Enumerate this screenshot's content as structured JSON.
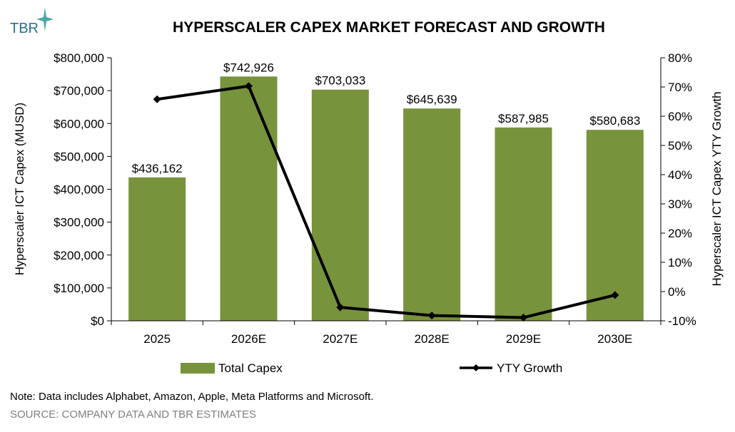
{
  "logo": {
    "text": "TBR"
  },
  "chart_data": {
    "type": "bar",
    "title": "HYPERSCALER CAPEX MARKET FORECAST AND GROWTH",
    "categories": [
      "2025",
      "2026E",
      "2027E",
      "2028E",
      "2029E",
      "2030E"
    ],
    "series": [
      {
        "name": "Total Capex",
        "type": "bar",
        "axis": "left",
        "color": "#77933c",
        "values": [
          436162,
          742926,
          703033,
          645639,
          587985,
          580683
        ],
        "labels": [
          "$436,162",
          "$742,926",
          "$703,033",
          "$645,639",
          "$587,985",
          "$580,683"
        ]
      },
      {
        "name": "YTY Growth",
        "type": "line",
        "axis": "right",
        "color": "#000000",
        "marker": "diamond",
        "values": [
          65.8,
          70.3,
          -5.4,
          -8.2,
          -8.9,
          -1.2
        ]
      }
    ],
    "ylabel": "Hyperscaler ICT Capex  (MUSD)",
    "ylabel_right": "Hyperscaler ICT Capex YTY Growth",
    "ylim": [
      0,
      800000
    ],
    "ylim_right": [
      -10,
      80
    ],
    "yticks": [
      "$0",
      "$100,000",
      "$200,000",
      "$300,000",
      "$400,000",
      "$500,000",
      "$600,000",
      "$700,000",
      "$800,000"
    ],
    "yticks_right": [
      "-10%",
      "0%",
      "10%",
      "20%",
      "30%",
      "40%",
      "50%",
      "60%",
      "70%",
      "80%"
    ],
    "grid": false,
    "legend_position": "bottom"
  },
  "note": "Note: Data includes Alphabet, Amazon, Apple, Meta Platforms and Microsoft.",
  "source": "SOURCE: COMPANY DATA AND TBR ESTIMATES",
  "colors": {
    "logo": "#2a6f8f",
    "logo_accent": "#4aa7a6",
    "source": "#7f7f7f"
  }
}
